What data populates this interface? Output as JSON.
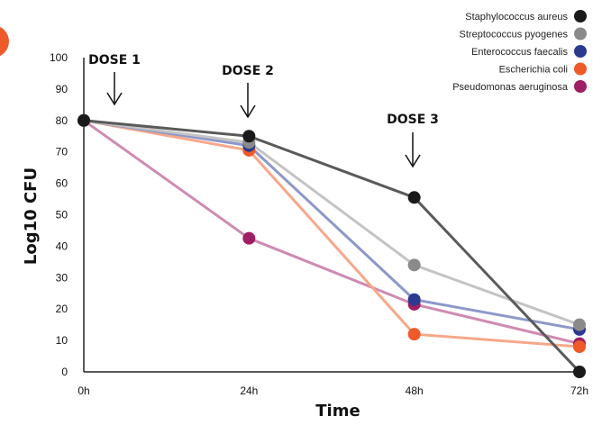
{
  "chart_data": {
    "type": "line",
    "xlabel": "Time",
    "ylabel": "Log10 CFU",
    "categories": [
      "0h",
      "24h",
      "48h",
      "72h"
    ],
    "ylim": [
      0,
      100
    ],
    "yticks": [
      0,
      10,
      20,
      30,
      40,
      50,
      60,
      70,
      80,
      90,
      100
    ],
    "grid": false,
    "legend_position": "top-right",
    "annotations": [
      {
        "label": "DOSE 1",
        "x": "0h"
      },
      {
        "label": "DOSE 2",
        "x": "24h"
      },
      {
        "label": "DOSE 3",
        "x": "48h"
      }
    ],
    "series": [
      {
        "name": "Staphylococcus aureus",
        "values": [
          80,
          75,
          55.5,
          0
        ],
        "marker_color": "#1a1a1a",
        "line_color": "#5a5a5a"
      },
      {
        "name": "Streptococcus pyogenes",
        "values": [
          80,
          73,
          34,
          15
        ],
        "marker_color": "#8a8a8a",
        "line_color": "#c4c4c4"
      },
      {
        "name": "Enterococcus faecalis",
        "values": [
          80,
          72,
          23,
          13.5
        ],
        "marker_color": "#2b3a8f",
        "line_color": "#8d98c9"
      },
      {
        "name": "Escherichia coli",
        "values": [
          80,
          70.5,
          12,
          8
        ],
        "marker_color": "#ef5a2a",
        "line_color": "#f6a88a"
      },
      {
        "name": "Pseudomonas aeruginosa",
        "values": [
          80,
          42.5,
          21.5,
          9
        ],
        "marker_color": "#9e1f63",
        "line_color": "#cf8ab2"
      }
    ]
  },
  "decor": {
    "accent_color": "#ef5a2a"
  }
}
